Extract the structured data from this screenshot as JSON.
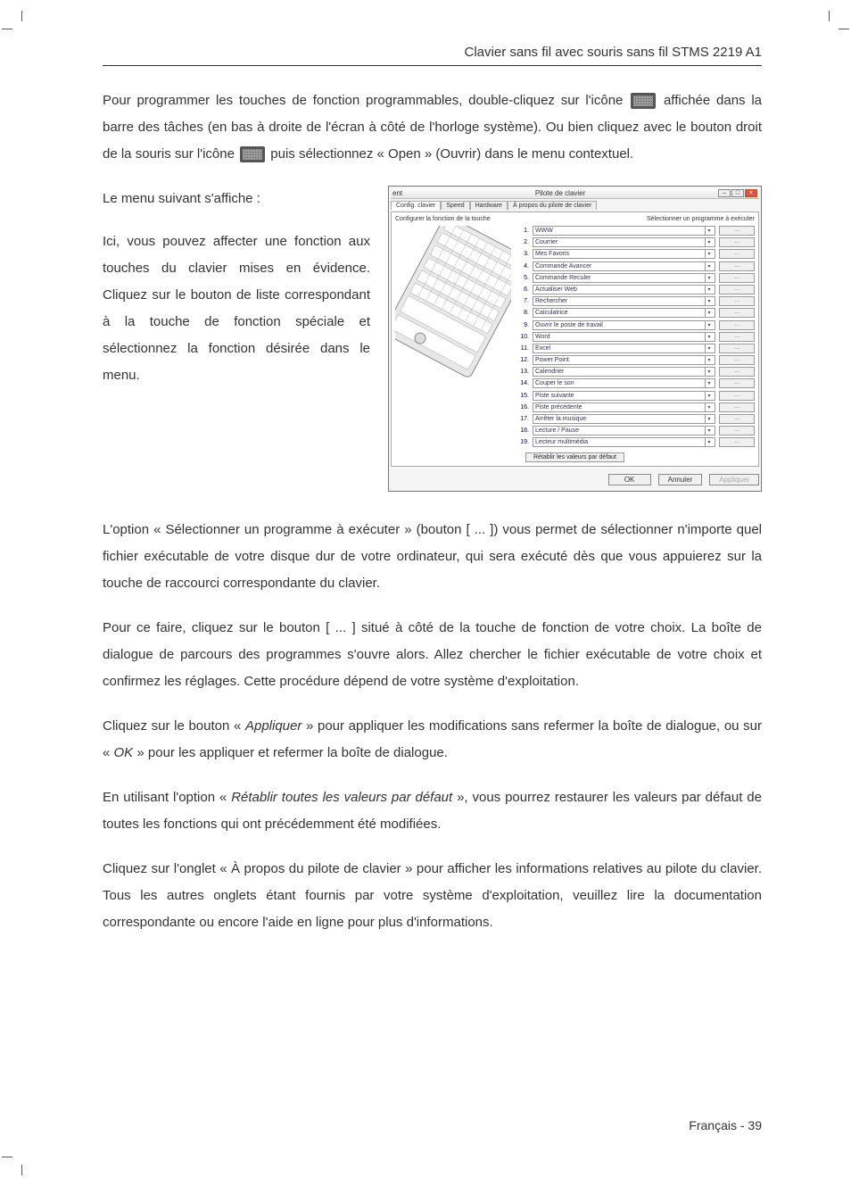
{
  "header": {
    "title": "Clavier sans fil avec souris sans fil STMS 2219 A1"
  },
  "para1_a": "Pour programmer les touches de fonction programmables, double-cliquez sur l'icône ",
  "para1_b": " affichée dans la barre des tâches (en bas à droite de l'écran à côté de l'horloge système). Ou bien cliquez avec le bouton droit de la souris sur l'icône ",
  "para1_c": " puis sélectionnez « Open » (Ouvrir) dans le menu contextuel.",
  "para2": "Le menu suivant s'affiche :",
  "para3": "Ici, vous pouvez affecter une fonction aux touches du clavier mises en évidence. Cliquez sur le bouton de liste correspondant à la touche de fonction spéciale et sélectionnez la fonction désirée dans le menu.",
  "dialog": {
    "title_left": "ent",
    "title_center": "Pilote de clavier",
    "tabs": [
      "Config. clavier",
      "Speed",
      "Hardware",
      "À propos du pilote de clavier"
    ],
    "config_label": "Configurer la fonction de la touche",
    "select_prog_label": "Sélectionner un programme à exécuter",
    "rows": [
      {
        "num": "1.",
        "label": "WWW"
      },
      {
        "num": "2.",
        "label": "Courrier"
      },
      {
        "num": "3.",
        "label": "Mes Favoris"
      },
      {
        "num": "4.",
        "label": "Commande Avancer"
      },
      {
        "num": "5.",
        "label": "Commande Reculer"
      },
      {
        "num": "6.",
        "label": "Actualiser Web"
      },
      {
        "num": "7.",
        "label": "Rechercher"
      },
      {
        "num": "8.",
        "label": "Calculatrice"
      },
      {
        "num": "9.",
        "label": "Ouvrir le poste de travail"
      },
      {
        "num": "10.",
        "label": "Word"
      },
      {
        "num": "11.",
        "label": "Excel"
      },
      {
        "num": "12.",
        "label": "Power Point"
      },
      {
        "num": "13.",
        "label": "Calendrier"
      },
      {
        "num": "14.",
        "label": "Couper le son"
      },
      {
        "num": "15.",
        "label": "Piste suivante"
      },
      {
        "num": "16.",
        "label": "Piste précédente"
      },
      {
        "num": "17.",
        "label": "Arrêter la musique"
      },
      {
        "num": "18.",
        "label": "Lecture / Pause"
      },
      {
        "num": "19.",
        "label": "Lecteur multimédia"
      }
    ],
    "browse_btn": "...",
    "restore_btn": "Rétablir les valeurs par défaut",
    "ok_btn": "OK",
    "cancel_btn": "Annuler",
    "apply_btn": "Appliquer"
  },
  "para4": "L'option « Sélectionner un programme à exécuter » (bouton [ ... ]) vous permet de sélectionner n'importe quel fichier exécutable de votre disque dur de votre ordinateur, qui sera exécuté dès que vous appuierez sur la touche de raccourci correspondante du clavier.",
  "para5": "Pour ce faire, cliquez sur le bouton [ ... ] situé à côté de la touche de fonction de votre choix. La boîte de dialogue de parcours des programmes s'ouvre alors. Allez chercher le fichier exécutable de votre choix et confirmez les réglages. Cette procédure dépend de votre système d'exploitation.",
  "para6_a": "Cliquez sur le bouton « ",
  "para6_em1": "Appliquer",
  "para6_b": " » pour appliquer les modifications sans refermer la boîte de dialogue, ou sur « ",
  "para6_em2": "OK",
  "para6_c": " » pour les appliquer et refermer la boîte de dialogue.",
  "para7_a": "En utilisant l'option « ",
  "para7_em": "Rétablir toutes les valeurs par défaut",
  "para7_b": " », vous pourrez restaurer les valeurs par défaut de toutes les fonctions qui ont précédemment été modifiées.",
  "para8": "Cliquez sur l'onglet « À propos du pilote de clavier » pour afficher les informations relatives au pilote du clavier. Tous les autres onglets étant fournis par votre système d'exploitation, veuillez lire la documentation correspondante ou encore l'aide en ligne pour plus d'informations.",
  "footer": {
    "lang": "Français",
    "sep": " - ",
    "page": "39"
  }
}
